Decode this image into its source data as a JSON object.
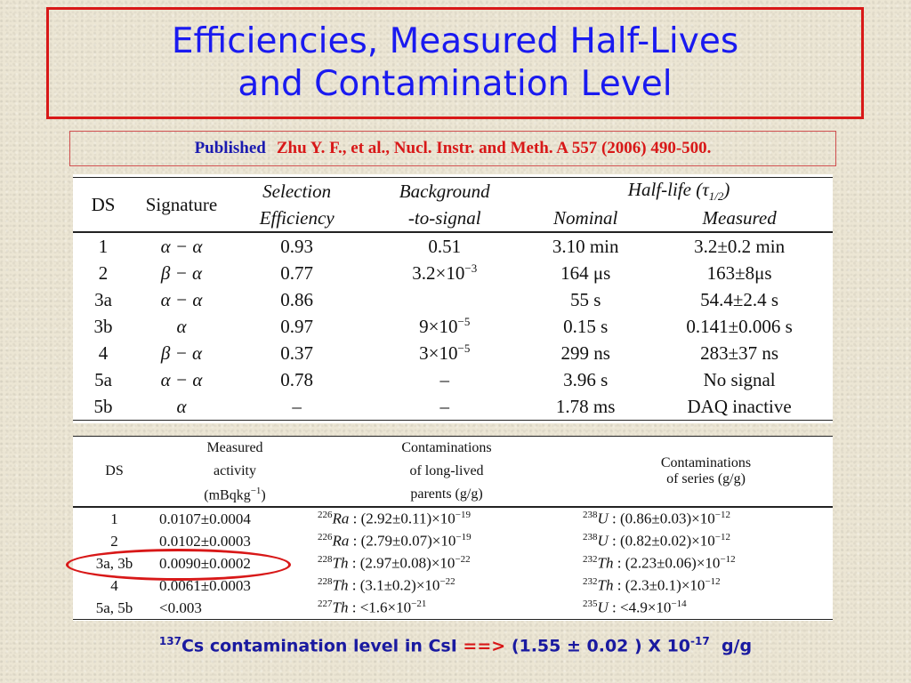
{
  "title": {
    "line1": "Efficiencies, Measured Half-Lives",
    "line2": "and Contamination Level"
  },
  "publication": {
    "label": "Published",
    "reference": "Zhu Y. F., et al., Nucl. Instr. and Meth. A 557 (2006) 490-500."
  },
  "table1": {
    "headers": {
      "ds": "DS",
      "signature": "Signature",
      "sel1": "Selection",
      "sel2": "Efficiency",
      "bg1": "Background",
      "bg2": "-to-signal",
      "hl_prefix": "Half-life (τ",
      "hl_sub": "1/2",
      "hl_suffix": ")",
      "nominal": "Nominal",
      "measured": "Measured"
    },
    "rows": [
      {
        "ds": "1",
        "sig": "α − α",
        "eff": "0.93",
        "bg": "0.51",
        "bg_sup": "",
        "nom": "3.10 min",
        "meas": "3.2±0.2 min"
      },
      {
        "ds": "2",
        "sig": "β − α",
        "eff": "0.77",
        "bg": "3.2×10",
        "bg_sup": "−3",
        "nom": "164 μs",
        "meas": "163±8μs"
      },
      {
        "ds": "3a",
        "sig": "α − α",
        "eff": "0.86",
        "bg": "",
        "bg_sup": "",
        "nom": "55 s",
        "meas": "54.4±2.4 s"
      },
      {
        "ds": "3b",
        "sig": "α",
        "eff": "0.97",
        "bg": "9×10",
        "bg_sup": "−5",
        "nom": "0.15 s",
        "meas": "0.141±0.006 s"
      },
      {
        "ds": "4",
        "sig": "β − α",
        "eff": "0.37",
        "bg": "3×10",
        "bg_sup": "−5",
        "nom": "299 ns",
        "meas": "283±37 ns"
      },
      {
        "ds": "5a",
        "sig": "α − α",
        "eff": "0.78",
        "bg": "–",
        "bg_sup": "",
        "nom": "3.96 s",
        "meas": "No signal"
      },
      {
        "ds": "5b",
        "sig": "α",
        "eff": "–",
        "bg": "–",
        "bg_sup": "",
        "nom": "1.78 ms",
        "meas": "DAQ inactive"
      }
    ]
  },
  "table2": {
    "headers": {
      "ds": "DS",
      "act1": "Measured",
      "act2": "activity",
      "act3": "(mBqkg",
      "act3_sup": "−1",
      "act3_end": ")",
      "par1": "Contaminations",
      "par2": "of long-lived",
      "par3": "parents (g/g)",
      "ser1": "Contaminations",
      "ser2": "of series (g/g)"
    },
    "rows": [
      {
        "ds": "1",
        "act": "0.0107±0.0004",
        "p_iso": "226",
        "p_el": "Ra",
        "p_val": " : (2.92±0.11)×10",
        "p_exp": "−19",
        "s_iso": "238",
        "s_el": "U",
        "s_val": " : (0.86±0.03)×10",
        "s_exp": "−12"
      },
      {
        "ds": "2",
        "act": "0.0102±0.0003",
        "p_iso": "226",
        "p_el": "Ra",
        "p_val": " : (2.79±0.07)×10",
        "p_exp": "−19",
        "s_iso": "238",
        "s_el": "U",
        "s_val": " : (0.82±0.02)×10",
        "s_exp": "−12"
      },
      {
        "ds": "3a, 3b",
        "act": "0.0090±0.0002",
        "p_iso": "228",
        "p_el": "Th",
        "p_val": " : (2.97±0.08)×10",
        "p_exp": "−22",
        "s_iso": "232",
        "s_el": "Th",
        "s_val": " : (2.23±0.06)×10",
        "s_exp": "−12"
      },
      {
        "ds": "4",
        "act": "0.0061±0.0003",
        "p_iso": "228",
        "p_el": "Th",
        "p_val": " : (3.1±0.2)×10",
        "p_exp": "−22",
        "s_iso": "232",
        "s_el": "Th",
        "s_val": " : (2.3±0.1)×10",
        "s_exp": "−12"
      },
      {
        "ds": "5a, 5b",
        "act": "<0.003",
        "p_iso": "227",
        "p_el": "Th",
        "p_val": " : <1.6×10",
        "p_exp": "−21",
        "s_iso": "235",
        "s_el": "U",
        "s_val": " : <4.9×10",
        "s_exp": "−14"
      }
    ]
  },
  "footer": {
    "iso": "137",
    "text1": "Cs contamination level in CsI",
    "arrow": "==>",
    "text2": "(1.55 ± 0.02 ) X 10",
    "exp": "-17",
    "unit": "g/g"
  },
  "colors": {
    "title_blue": "#1a1af0",
    "accent_red": "#d81818",
    "footer_blue": "#1a1aa0"
  }
}
